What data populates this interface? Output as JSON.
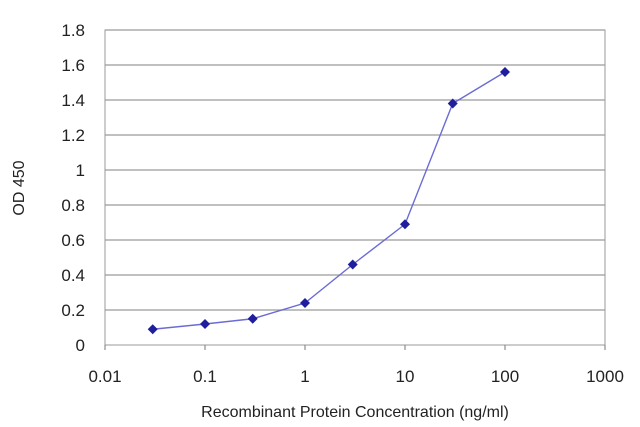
{
  "chart_data": {
    "type": "line",
    "title": "",
    "xlabel": "Recombinant Protein Concentration (ng/ml)",
    "ylabel": "OD 450",
    "x_scale": "log",
    "xlim": [
      0.01,
      1000
    ],
    "ylim": [
      0,
      1.8
    ],
    "x_ticks": [
      "0.01",
      "0.1",
      "1",
      "10",
      "100",
      "1000"
    ],
    "y_ticks": [
      "0",
      "0.2",
      "0.4",
      "0.6",
      "0.8",
      "1",
      "1.2",
      "1.4",
      "1.6",
      "1.8"
    ],
    "grid": "horizontal",
    "legend": "none",
    "series": [
      {
        "x": [
          0.03,
          0.1,
          0.3,
          1,
          3,
          10,
          30,
          100
        ],
        "y": [
          0.09,
          0.12,
          0.15,
          0.24,
          0.46,
          0.69,
          1.38,
          1.56
        ]
      }
    ],
    "colors": {
      "line": "#6b6bd6",
      "marker": "#1f1f9e",
      "grid": "#9a9a9a",
      "plot_bg": "#ffffff"
    }
  }
}
